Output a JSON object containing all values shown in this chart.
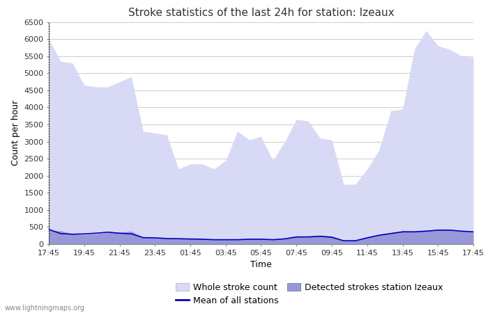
{
  "title": "Stroke statistics of the last 24h for station: Izeaux",
  "xlabel": "Time",
  "ylabel": "Count per hour",
  "ylim": [
    0,
    6500
  ],
  "yticks": [
    0,
    500,
    1000,
    1500,
    2000,
    2500,
    3000,
    3500,
    4000,
    4500,
    5000,
    5500,
    6000,
    6500
  ],
  "x_labels": [
    "17:45",
    "19:45",
    "21:45",
    "23:45",
    "01:45",
    "03:45",
    "05:45",
    "07:45",
    "09:45",
    "11:45",
    "13:45",
    "15:45",
    "17:45"
  ],
  "whole_stroke": [
    6000,
    5350,
    5300,
    4650,
    4600,
    4600,
    4750,
    4900,
    3300,
    3250,
    3200,
    2200,
    2350,
    2350,
    2200,
    2450,
    3300,
    3050,
    3150,
    2450,
    3000,
    3650,
    3600,
    3100,
    3050,
    1750,
    1750,
    2200,
    2750,
    3900,
    3950,
    5700,
    6250,
    5800,
    5700,
    5500,
    5450
  ],
  "detected_strokes": [
    400,
    390,
    300,
    280,
    300,
    340,
    340,
    380,
    200,
    190,
    175,
    170,
    165,
    155,
    140,
    140,
    145,
    155,
    155,
    145,
    175,
    235,
    240,
    260,
    240,
    110,
    100,
    200,
    280,
    340,
    390,
    380,
    410,
    420,
    420,
    390,
    380
  ],
  "mean_line": [
    430,
    310,
    290,
    300,
    320,
    350,
    320,
    300,
    190,
    185,
    165,
    160,
    150,
    145,
    130,
    130,
    130,
    145,
    145,
    130,
    155,
    210,
    210,
    230,
    200,
    100,
    100,
    185,
    260,
    310,
    360,
    360,
    380,
    410,
    410,
    380,
    360
  ],
  "whole_stroke_color": "#d8daf5",
  "detected_stroke_color": "#9898d8",
  "mean_line_color": "#0000bb",
  "background_color": "#ffffff",
  "grid_color": "#cccccc",
  "title_fontsize": 11,
  "label_fontsize": 9,
  "tick_fontsize": 8,
  "watermark": "www.lightningmaps.org"
}
